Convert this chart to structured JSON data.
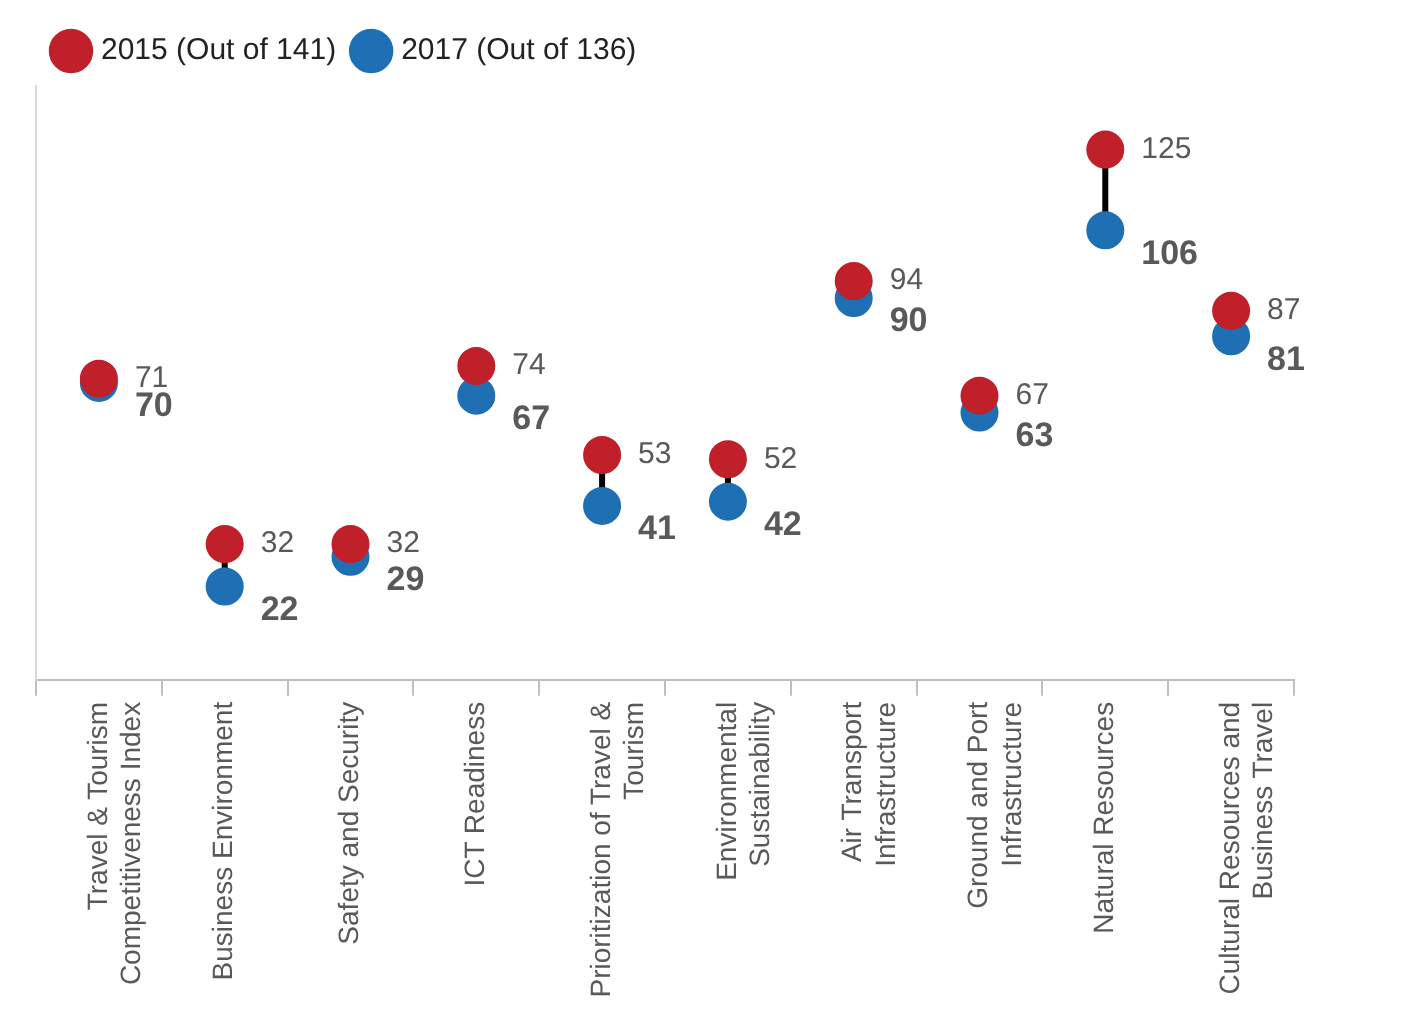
{
  "chart_data": {
    "type": "scatter",
    "categories": [
      "Travel & Tourism Competitiveness Index",
      "Business Environment",
      "Safety and Security",
      "ICT Readiness",
      "Prioritization of Travel & Tourism",
      "Environmental Sustainability",
      "Air Transport Infrastructure",
      "Ground and Port Infrastructure",
      "Natural Resources",
      "Cultural Resources and Business Travel"
    ],
    "series": [
      {
        "name": "2015 (Out of 141)",
        "color": "#c0202a",
        "values": [
          71,
          32,
          32,
          74,
          53,
          52,
          94,
          67,
          125,
          87
        ]
      },
      {
        "name": "2017 (Out of 136)",
        "color": "#1f6fb5",
        "values": [
          70,
          22,
          29,
          67,
          41,
          42,
          90,
          63,
          106,
          81
        ]
      }
    ],
    "data_labels": true,
    "legend": "top left",
    "marker": "circle",
    "grid": false
  }
}
